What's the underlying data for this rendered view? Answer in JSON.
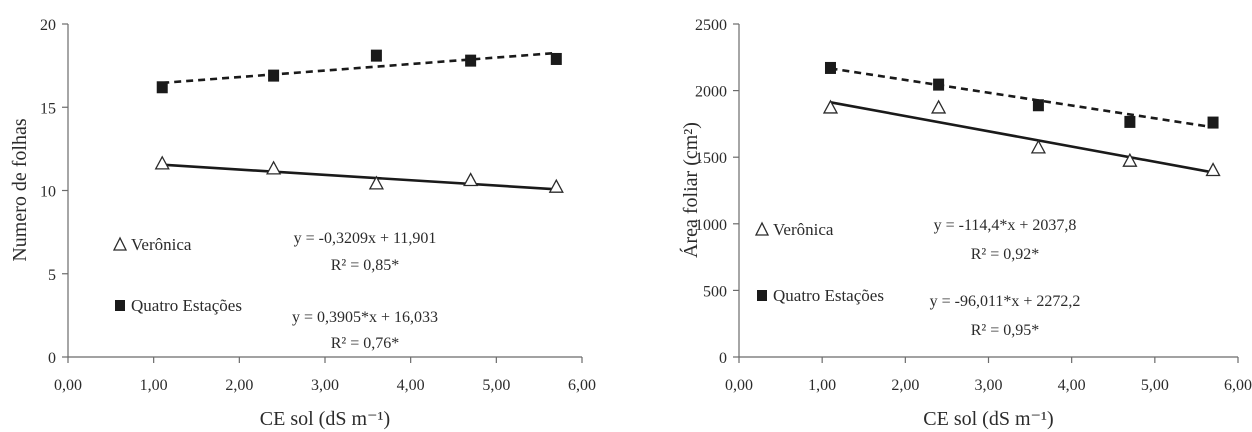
{
  "chart_data": [
    {
      "type": "scatter",
      "title": "",
      "xlabel": "CE sol (dS m⁻¹)",
      "ylabel": "Numero de folhas",
      "xlim": [
        0,
        6
      ],
      "ylim": [
        0,
        20
      ],
      "x_ticks": [
        "0,00",
        "1,00",
        "2,00",
        "3,00",
        "4,00",
        "5,00",
        "6,00"
      ],
      "y_ticks": [
        "0",
        "5",
        "10",
        "15",
        "20"
      ],
      "grid": false,
      "series": [
        {
          "name": "Verônica",
          "marker": "open-triangle",
          "x": [
            1.1,
            2.4,
            3.6,
            4.7,
            5.7
          ],
          "y": [
            11.6,
            11.3,
            10.4,
            10.6,
            10.2
          ],
          "trendline": {
            "style": "solid",
            "slope": -0.3209,
            "intercept": 11.901
          },
          "equation": "y = -0,3209x  + 11,901",
          "r2": "R² = 0,85*"
        },
        {
          "name": "Quatro Estações",
          "marker": "filled-square",
          "x": [
            1.1,
            2.4,
            3.6,
            4.7,
            5.7
          ],
          "y": [
            16.2,
            16.9,
            18.1,
            17.8,
            17.9
          ],
          "trendline": {
            "style": "dashed",
            "slope": 0.3905,
            "intercept": 16.033
          },
          "equation": "y = 0,3905*x  + 16,033",
          "r2": "R² = 0,76*"
        }
      ]
    },
    {
      "type": "scatter",
      "title": "",
      "xlabel": "CE sol (dS m⁻¹)",
      "ylabel": "Área foliar (cm²)",
      "xlim": [
        0,
        6
      ],
      "ylim": [
        0,
        2500
      ],
      "x_ticks": [
        "0,00",
        "1,00",
        "2,00",
        "3,00",
        "4,00",
        "5,00",
        "6,00"
      ],
      "y_ticks": [
        "0",
        "500",
        "1000",
        "1500",
        "2000",
        "2500"
      ],
      "grid": false,
      "series": [
        {
          "name": "Verônica",
          "marker": "open-triangle",
          "x": [
            1.1,
            2.4,
            3.6,
            4.7,
            5.7
          ],
          "y": [
            1870,
            1870,
            1570,
            1470,
            1400
          ],
          "trendline": {
            "style": "solid",
            "slope": -114.4,
            "intercept": 2037.8
          },
          "equation": "y = -114,4*x  + 2037,8",
          "r2": "R² = 0,92*"
        },
        {
          "name": "Quatro Estações",
          "marker": "filled-square",
          "x": [
            1.1,
            2.4,
            3.6,
            4.7,
            5.7
          ],
          "y": [
            2170,
            2045,
            1890,
            1765,
            1760
          ],
          "trendline": {
            "style": "dashed",
            "slope": -96.011,
            "intercept": 2272.2
          },
          "equation": "y = -96,011*x  + 2272,2",
          "r2": "R² = 0,95*"
        }
      ]
    }
  ]
}
